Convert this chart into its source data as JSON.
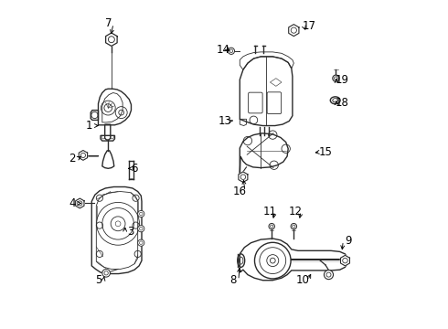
{
  "background_color": "#ffffff",
  "line_color": "#2a2a2a",
  "text_color": "#000000",
  "font_size": 8.5,
  "label_data": [
    [
      1,
      0.09,
      0.618,
      0.128,
      0.618
    ],
    [
      2,
      0.038,
      0.518,
      0.075,
      0.528
    ],
    [
      3,
      0.215,
      0.295,
      0.2,
      0.318
    ],
    [
      4,
      0.038,
      0.382,
      0.068,
      0.382
    ],
    [
      5,
      0.118,
      0.15,
      0.138,
      0.168
    ],
    [
      6,
      0.228,
      0.488,
      0.208,
      0.488
    ],
    [
      7,
      0.148,
      0.928,
      0.155,
      0.888
    ],
    [
      8,
      0.528,
      0.148,
      0.548,
      0.195
    ],
    [
      9,
      0.878,
      0.268,
      0.858,
      0.232
    ],
    [
      10,
      0.738,
      0.148,
      0.768,
      0.175
    ],
    [
      11,
      0.638,
      0.358,
      0.648,
      0.328
    ],
    [
      12,
      0.718,
      0.358,
      0.728,
      0.328
    ],
    [
      13,
      0.502,
      0.632,
      0.535,
      0.635
    ],
    [
      14,
      0.498,
      0.848,
      0.518,
      0.845
    ],
    [
      15,
      0.808,
      0.538,
      0.768,
      0.535
    ],
    [
      16,
      0.548,
      0.418,
      0.558,
      0.462
    ],
    [
      17,
      0.758,
      0.922,
      0.748,
      0.908
    ],
    [
      18,
      0.858,
      0.688,
      0.842,
      0.695
    ],
    [
      19,
      0.858,
      0.758,
      0.842,
      0.762
    ]
  ]
}
